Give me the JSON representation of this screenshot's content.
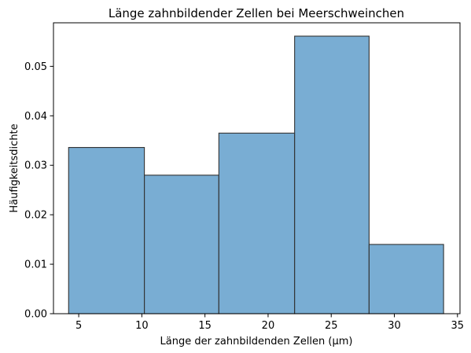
{
  "chart_data": {
    "type": "bar",
    "subtype": "histogram",
    "title": "Länge zahnbildender Zellen bei Meerschweinchen",
    "xlabel": "Länge der zahnbildenden Zellen (µm)",
    "ylabel": "Häufigkeitsdichte",
    "xlim": [
      3.0,
      35.2
    ],
    "ylim": [
      0,
      0.0588
    ],
    "xticks": [
      5,
      10,
      15,
      20,
      25,
      30,
      35
    ],
    "yticks": [
      0.0,
      0.01,
      0.02,
      0.03,
      0.04,
      0.05
    ],
    "ytick_labels": [
      "0.00",
      "0.01",
      "0.02",
      "0.03",
      "0.04",
      "0.05"
    ],
    "bins": [
      {
        "x_start": 4.2,
        "x_end": 10.2,
        "value": 0.0336
      },
      {
        "x_start": 10.2,
        "x_end": 16.1,
        "value": 0.028
      },
      {
        "x_start": 16.1,
        "x_end": 22.1,
        "value": 0.0365
      },
      {
        "x_start": 22.1,
        "x_end": 28.0,
        "value": 0.0561
      },
      {
        "x_start": 28.0,
        "x_end": 33.9,
        "value": 0.014
      }
    ],
    "grid": false,
    "legend": "none",
    "colors": {
      "bar_fill": "#5b9bc9",
      "bar_stroke": "#333333",
      "axis": "#000000"
    }
  }
}
